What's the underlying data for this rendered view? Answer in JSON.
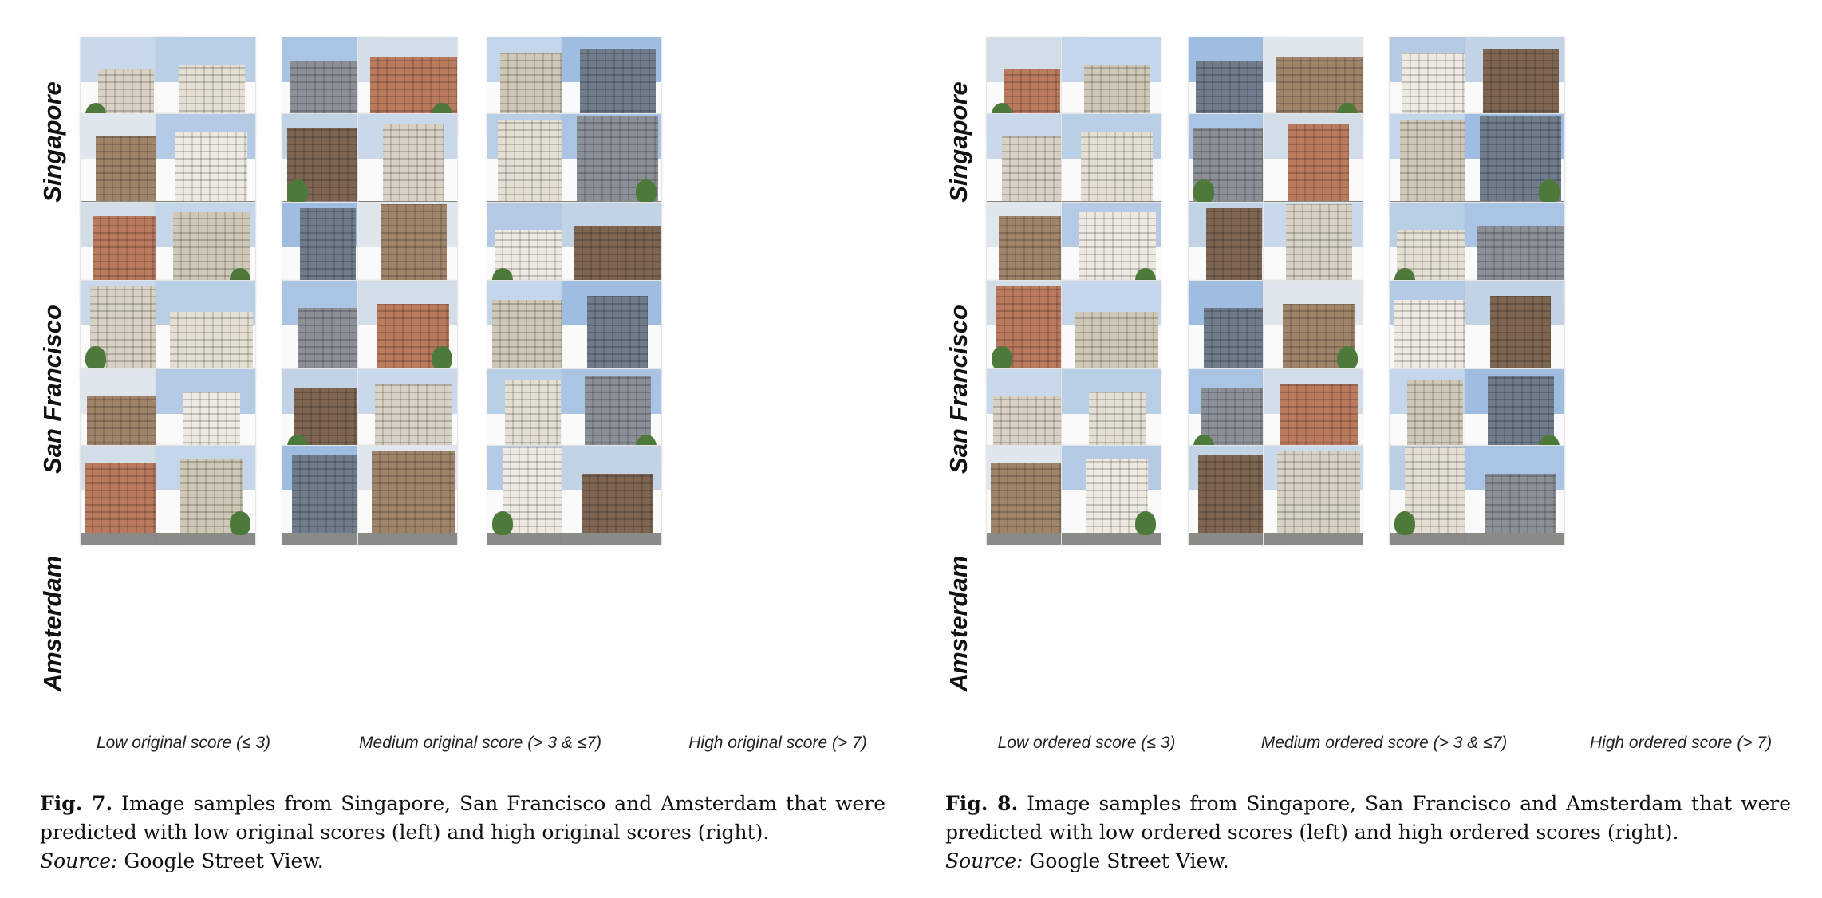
{
  "figures": [
    {
      "id": "fig7",
      "row_labels": [
        "Singapore",
        "San Francisco",
        "Amsterdam"
      ],
      "column_captions": [
        "Low original score (≤ 3)",
        "Medium original score (> 3 & ≤7)",
        "High original score (> 7)"
      ],
      "caption": {
        "label": "Fig. 7.",
        "text": "Image samples from Singapore, San Francisco and Amsterdam that were predicted with low original scores (left) and high original scores (right).",
        "source_label": "Source:",
        "source_text": "Google Street View."
      }
    },
    {
      "id": "fig8",
      "row_labels": [
        "Singapore",
        "San Francisco",
        "Amsterdam"
      ],
      "column_captions": [
        "Low ordered score (≤ 3)",
        "Medium ordered score (> 3 & ≤7)",
        "High ordered score (> 7)"
      ],
      "caption": {
        "label": "Fig. 8.",
        "text": "Image samples from Singapore, San Francisco and Amsterdam that were predicted with low ordered scores (left) and high ordered scores (right).",
        "source_label": "Source:",
        "source_text": "Google Street View."
      }
    }
  ]
}
